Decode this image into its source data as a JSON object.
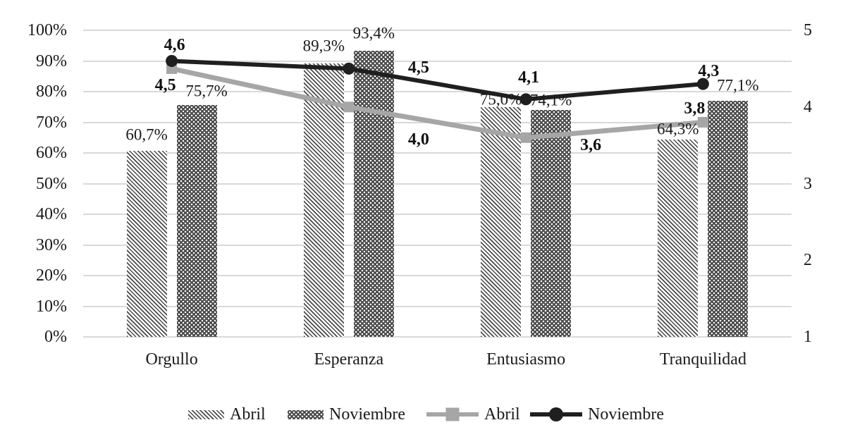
{
  "chart_data": {
    "type": "combo-bar-line",
    "categories": [
      "Orgullo",
      "Esperanza",
      "Entusiasmo",
      "Tranquilidad"
    ],
    "bar_series": [
      {
        "name": "Abril",
        "axis": "left",
        "pattern": "diagonal-hatch",
        "values": [
          60.7,
          89.3,
          75.0,
          64.3
        ],
        "labels": [
          "60,7%",
          "89,3%",
          "75,0%",
          "64,3%"
        ]
      },
      {
        "name": "Noviembre",
        "axis": "left",
        "pattern": "dots",
        "values": [
          75.7,
          93.4,
          74.1,
          77.1
        ],
        "labels": [
          "75,7%",
          "93,4%",
          "74,1%",
          "77,1%"
        ]
      }
    ],
    "line_series": [
      {
        "name": "Abril",
        "axis": "right",
        "marker": "square",
        "color": "#a6a6a6",
        "values": [
          4.5,
          4.0,
          3.6,
          3.8
        ],
        "labels": [
          "4,5",
          "4,0",
          "3,6",
          "3,8"
        ]
      },
      {
        "name": "Noviembre",
        "axis": "right",
        "marker": "circle",
        "color": "#1f1f1f",
        "values": [
          4.6,
          4.5,
          4.1,
          4.3
        ],
        "labels": [
          "4,6",
          "4,5",
          "4,1",
          "4,3"
        ]
      }
    ],
    "left_axis": {
      "ticks": [
        "100%",
        "90%",
        "80%",
        "70%",
        "60%",
        "50%",
        "40%",
        "30%",
        "20%",
        "10%",
        "0%"
      ],
      "range": [
        0,
        100
      ]
    },
    "right_axis": {
      "ticks": [
        "5",
        "4",
        "3",
        "2",
        "1"
      ],
      "range": [
        1,
        5
      ]
    },
    "grid": true,
    "legend_position": "bottom",
    "legend": [
      {
        "label": "Abril",
        "swatch": "bar-hatch"
      },
      {
        "label": "Noviembre",
        "swatch": "bar-dots"
      },
      {
        "label": "Abril",
        "swatch": "line-square"
      },
      {
        "label": "Noviembre",
        "swatch": "line-circle"
      }
    ]
  },
  "colors": {
    "background": "#ffffff",
    "gridline": "#d9d9d9",
    "hatch_stripe": "#4a4a4a",
    "dark_bar": "#4d4d4d",
    "gray_line": "#a6a6a6",
    "black_line": "#1f1f1f",
    "text": "#1a1a1a"
  }
}
